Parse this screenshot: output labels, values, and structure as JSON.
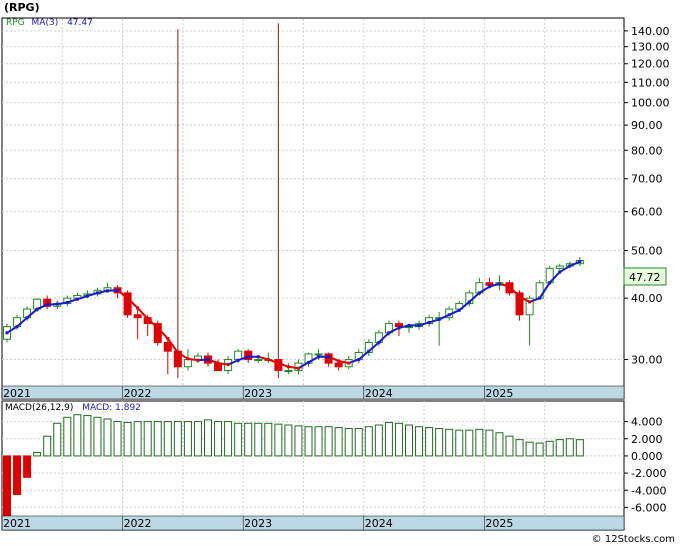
{
  "title": "(RPG)",
  "legend": {
    "ticker": "RPG",
    "ma_label": "MA(3)",
    "ma_value": "47.47",
    "macd_params": "MACD(26,12,9)",
    "macd_label": "MACD:",
    "macd_value": "1.892"
  },
  "last_price_label": "47.72",
  "credit": "© 12Stocks.com",
  "colors": {
    "up": "#228b22",
    "down": "#e00000",
    "ma": "#1a1acc",
    "ma_down": "#e00000",
    "spike": "#8b1a1a",
    "macd_pos": "#1e6e1e",
    "macd_neg": "#e00000",
    "axis_band": "#bcd8e4",
    "last_box": "#e8ffe0"
  },
  "chart_data": [
    {
      "type": "candlestick",
      "scale": "log",
      "ylim": [
        26.5,
        148
      ],
      "yticks": [
        30,
        40,
        50,
        60,
        70,
        80,
        90,
        100,
        110,
        120,
        130,
        140
      ],
      "ytick_labels": [
        "30.00",
        "40.00",
        "50.00",
        "60.00",
        "70.00",
        "80.00",
        "90.00",
        "100.00",
        "110.00",
        "120.00",
        "130.00",
        "140.00"
      ],
      "x_years": [
        {
          "label": "2021",
          "month": 0
        },
        {
          "label": "2022",
          "month": 12
        },
        {
          "label": "2023",
          "month": 24
        },
        {
          "label": "2024",
          "month": 36
        },
        {
          "label": "2025",
          "month": 48
        }
      ],
      "x_gridlines": [
        6,
        12,
        18,
        24,
        30,
        36,
        42,
        48,
        54
      ],
      "months": [
        "2021-01",
        "2021-02",
        "2021-03",
        "2021-04",
        "2021-05",
        "2021-06",
        "2021-07",
        "2021-08",
        "2021-09",
        "2021-10",
        "2021-11",
        "2021-12",
        "2022-01",
        "2022-02",
        "2022-03",
        "2022-04",
        "2022-05",
        "2022-06",
        "2022-07",
        "2022-08",
        "2022-09",
        "2022-10",
        "2022-11",
        "2022-12",
        "2023-01",
        "2023-02",
        "2023-03",
        "2023-04",
        "2023-05",
        "2023-06",
        "2023-07",
        "2023-08",
        "2023-09",
        "2023-10",
        "2023-11",
        "2023-12",
        "2024-01",
        "2024-02",
        "2024-03",
        "2024-04",
        "2024-05",
        "2024-06",
        "2024-07",
        "2024-08",
        "2024-09",
        "2024-10",
        "2024-11",
        "2024-12",
        "2025-01",
        "2025-02",
        "2025-03",
        "2025-04",
        "2025-05",
        "2025-06",
        "2025-07",
        "2025-08",
        "2025-09",
        "2025-10"
      ],
      "open": [
        33.0,
        35.0,
        36.5,
        38.0,
        39.8,
        38.5,
        39.0,
        40.0,
        40.5,
        40.8,
        41.5,
        42.0,
        41.0,
        37.0,
        36.5,
        35.5,
        32.5,
        31.2,
        29.0,
        30.0,
        30.5,
        29.5,
        28.5,
        30.0,
        31.2,
        30.0,
        30.0,
        30.0,
        28.5,
        28.5,
        29.5,
        30.8,
        30.8,
        29.5,
        29.0,
        30.0,
        31.0,
        32.5,
        34.0,
        35.5,
        35.0,
        35.0,
        35.5,
        36.5,
        36.5,
        38.0,
        39.0,
        41.0,
        43.0,
        42.5,
        43.0,
        41.0,
        37.0,
        40.0,
        43.0,
        46.0,
        46.5,
        47.0
      ],
      "close": [
        35.0,
        36.5,
        38.0,
        39.8,
        38.5,
        39.0,
        40.0,
        40.5,
        40.8,
        41.5,
        42.0,
        41.0,
        37.0,
        36.5,
        35.5,
        32.5,
        31.2,
        29.0,
        30.0,
        30.5,
        29.5,
        28.5,
        30.0,
        31.2,
        30.0,
        30.0,
        30.0,
        28.5,
        28.5,
        29.5,
        30.8,
        30.8,
        29.5,
        29.0,
        30.0,
        31.0,
        32.5,
        34.0,
        35.5,
        35.0,
        35.0,
        35.5,
        36.5,
        36.5,
        38.0,
        39.0,
        41.0,
        43.0,
        42.5,
        43.0,
        41.0,
        37.0,
        40.0,
        43.0,
        46.0,
        46.5,
        47.0,
        47.72
      ],
      "high": [
        35.5,
        37.0,
        38.5,
        40.0,
        40.5,
        39.5,
        40.5,
        41.0,
        41.5,
        42.0,
        43.0,
        42.5,
        41.5,
        38.0,
        37.0,
        36.0,
        33.0,
        141.0,
        31.5,
        31.0,
        31.0,
        30.0,
        30.5,
        31.5,
        31.5,
        30.5,
        31.0,
        145.0,
        29.5,
        30.0,
        31.0,
        31.5,
        31.0,
        30.0,
        30.5,
        31.5,
        33.0,
        34.5,
        36.0,
        36.0,
        35.5,
        36.0,
        37.0,
        37.5,
        38.5,
        39.5,
        41.5,
        44.0,
        44.0,
        44.5,
        43.5,
        41.5,
        40.5,
        43.5,
        46.5,
        47.0,
        47.5,
        48.5
      ],
      "low": [
        32.5,
        34.5,
        36.0,
        37.5,
        38.0,
        38.0,
        38.5,
        39.5,
        40.0,
        40.3,
        41.0,
        40.0,
        36.5,
        33.0,
        33.5,
        32.0,
        28.0,
        27.5,
        28.5,
        29.5,
        29.0,
        28.5,
        28.0,
        29.5,
        29.5,
        29.5,
        29.5,
        27.5,
        28.0,
        28.0,
        29.0,
        30.0,
        29.0,
        28.5,
        28.7,
        29.5,
        30.5,
        32.0,
        33.5,
        33.5,
        34.0,
        34.5,
        35.0,
        32.0,
        36.0,
        37.5,
        38.5,
        40.5,
        42.0,
        41.5,
        40.5,
        36.0,
        32.0,
        40.0,
        42.5,
        45.5,
        46.0,
        46.5
      ],
      "ma3": [
        34.0,
        35.0,
        36.5,
        38.0,
        38.8,
        38.9,
        39.2,
        39.8,
        40.4,
        41.0,
        41.4,
        41.5,
        40.0,
        38.2,
        36.3,
        34.8,
        33.1,
        31.0,
        30.1,
        29.9,
        30.0,
        29.5,
        29.3,
        29.9,
        30.4,
        30.4,
        30.0,
        29.5,
        29.0,
        28.8,
        29.6,
        30.4,
        30.4,
        29.8,
        29.5,
        30.0,
        31.2,
        32.5,
        34.0,
        34.8,
        35.2,
        35.2,
        35.7,
        36.2,
        37.0,
        37.8,
        39.3,
        41.0,
        42.2,
        42.8,
        42.2,
        40.3,
        39.3,
        40.0,
        43.0,
        45.2,
        46.5,
        47.47
      ]
    },
    {
      "type": "bar",
      "ylim": [
        -7,
        5
      ],
      "yticks": [
        4,
        2,
        0,
        -2,
        -4,
        -6
      ],
      "ytick_labels": [
        "4.000",
        "2.000",
        "0.000",
        "-2.000",
        "-4.000",
        "-6.000"
      ],
      "values": [
        -7.0,
        -4.5,
        -2.5,
        0.4,
        2.3,
        3.8,
        4.5,
        4.8,
        4.7,
        4.5,
        4.3,
        4.0,
        3.9,
        4.0,
        4.0,
        4.0,
        4.0,
        4.0,
        4.0,
        4.0,
        4.2,
        4.0,
        4.0,
        3.8,
        3.8,
        3.8,
        3.8,
        3.7,
        3.6,
        3.5,
        3.4,
        3.4,
        3.4,
        3.3,
        3.2,
        3.2,
        3.4,
        3.6,
        3.9,
        3.8,
        3.6,
        3.4,
        3.3,
        3.2,
        3.1,
        3.0,
        3.0,
        3.1,
        3.0,
        2.7,
        2.3,
        1.9,
        1.6,
        1.5,
        1.7,
        1.9,
        2.0,
        1.892
      ]
    }
  ]
}
